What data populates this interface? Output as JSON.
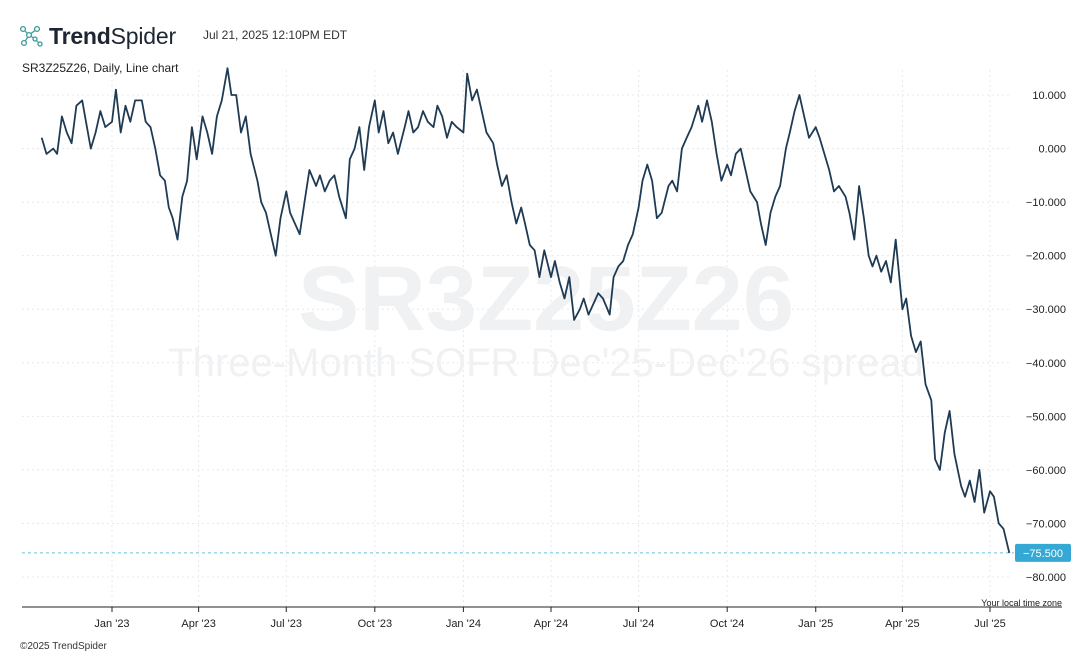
{
  "header": {
    "brand_bold": "Trend",
    "brand_light": "Spider",
    "timestamp": "Jul 21, 2025 12:10PM EDT"
  },
  "subtitle": "SR3Z25Z26, Daily, Line chart",
  "watermark": {
    "symbol": "SR3Z25Z26",
    "description": "Three-Month SOFR Dec'25-Dec'26 spread"
  },
  "timezone_note": "Your local time zone",
  "footer": "©2025 TrendSpider",
  "colors": {
    "line": "#1f3b54",
    "last_price_badge": "#35a9d4",
    "last_price_line": "#6cbfe0",
    "grid": "#e6e8eb"
  },
  "chart_data": {
    "type": "line",
    "xlabel": "",
    "ylabel": "",
    "ylim": [
      -85,
      15
    ],
    "y_ticks": [
      "10.000",
      "0.000",
      "−10.000",
      "−20.000",
      "−30.000",
      "−40.000",
      "−50.000",
      "−60.000",
      "−70.000",
      "−80.000"
    ],
    "y_tick_values": [
      10,
      0,
      -10,
      -20,
      -30,
      -40,
      -50,
      -60,
      -70,
      -80
    ],
    "x_ticks": [
      "Jan '23",
      "Apr '23",
      "Jul '23",
      "Oct '23",
      "Jan '24",
      "Apr '24",
      "Jul '24",
      "Oct '24",
      "Jan '25",
      "Apr '25",
      "Jul '25"
    ],
    "x_tick_dates": [
      "2023-01-01",
      "2023-04-01",
      "2023-07-01",
      "2023-10-01",
      "2024-01-01",
      "2024-04-01",
      "2024-07-01",
      "2024-10-01",
      "2025-01-01",
      "2025-04-01",
      "2025-07-01"
    ],
    "last_value": -75.5,
    "last_value_label": "−75.500",
    "series": [
      {
        "points": [
          [
            "2022-10-20",
            2
          ],
          [
            "2022-10-25",
            -1
          ],
          [
            "2022-11-01",
            0
          ],
          [
            "2022-11-05",
            -1
          ],
          [
            "2022-11-10",
            6
          ],
          [
            "2022-11-15",
            3
          ],
          [
            "2022-11-20",
            1
          ],
          [
            "2022-11-25",
            8
          ],
          [
            "2022-12-01",
            9
          ],
          [
            "2022-12-05",
            5
          ],
          [
            "2022-12-10",
            0
          ],
          [
            "2022-12-15",
            3
          ],
          [
            "2022-12-20",
            7
          ],
          [
            "2022-12-25",
            4
          ],
          [
            "2023-01-01",
            5
          ],
          [
            "2023-01-05",
            11
          ],
          [
            "2023-01-10",
            3
          ],
          [
            "2023-01-15",
            8
          ],
          [
            "2023-01-20",
            5
          ],
          [
            "2023-01-25",
            9
          ],
          [
            "2023-02-01",
            9
          ],
          [
            "2023-02-05",
            5
          ],
          [
            "2023-02-10",
            4
          ],
          [
            "2023-02-15",
            0
          ],
          [
            "2023-02-20",
            -5
          ],
          [
            "2023-02-25",
            -6
          ],
          [
            "2023-03-01",
            -11
          ],
          [
            "2023-03-05",
            -13
          ],
          [
            "2023-03-10",
            -17
          ],
          [
            "2023-03-15",
            -9
          ],
          [
            "2023-03-20",
            -6
          ],
          [
            "2023-03-25",
            4
          ],
          [
            "2023-03-30",
            -2
          ],
          [
            "2023-04-05",
            6
          ],
          [
            "2023-04-10",
            3
          ],
          [
            "2023-04-15",
            -1
          ],
          [
            "2023-04-20",
            6
          ],
          [
            "2023-04-25",
            9
          ],
          [
            "2023-05-01",
            15
          ],
          [
            "2023-05-05",
            10
          ],
          [
            "2023-05-10",
            10
          ],
          [
            "2023-05-15",
            3
          ],
          [
            "2023-05-20",
            6
          ],
          [
            "2023-05-25",
            -1
          ],
          [
            "2023-06-01",
            -6
          ],
          [
            "2023-06-05",
            -10
          ],
          [
            "2023-06-10",
            -12
          ],
          [
            "2023-06-15",
            -16
          ],
          [
            "2023-06-20",
            -20
          ],
          [
            "2023-06-25",
            -13
          ],
          [
            "2023-07-01",
            -8
          ],
          [
            "2023-07-05",
            -12
          ],
          [
            "2023-07-10",
            -14
          ],
          [
            "2023-07-15",
            -16
          ],
          [
            "2023-07-20",
            -10
          ],
          [
            "2023-07-25",
            -4
          ],
          [
            "2023-08-01",
            -7
          ],
          [
            "2023-08-05",
            -5
          ],
          [
            "2023-08-10",
            -8
          ],
          [
            "2023-08-15",
            -6
          ],
          [
            "2023-08-20",
            -5
          ],
          [
            "2023-08-25",
            -9
          ],
          [
            "2023-09-01",
            -13
          ],
          [
            "2023-09-05",
            -2
          ],
          [
            "2023-09-10",
            0
          ],
          [
            "2023-09-15",
            4
          ],
          [
            "2023-09-20",
            -4
          ],
          [
            "2023-09-25",
            4
          ],
          [
            "2023-10-01",
            9
          ],
          [
            "2023-10-05",
            3
          ],
          [
            "2023-10-10",
            7
          ],
          [
            "2023-10-15",
            1
          ],
          [
            "2023-10-20",
            3
          ],
          [
            "2023-10-25",
            -1
          ],
          [
            "2023-11-01",
            4
          ],
          [
            "2023-11-05",
            7
          ],
          [
            "2023-11-10",
            3
          ],
          [
            "2023-11-15",
            4
          ],
          [
            "2023-11-20",
            7
          ],
          [
            "2023-11-25",
            5
          ],
          [
            "2023-12-01",
            4
          ],
          [
            "2023-12-05",
            8
          ],
          [
            "2023-12-10",
            6
          ],
          [
            "2023-12-15",
            2
          ],
          [
            "2023-12-20",
            5
          ],
          [
            "2023-12-25",
            4
          ],
          [
            "2024-01-01",
            3
          ],
          [
            "2024-01-05",
            14
          ],
          [
            "2024-01-10",
            9
          ],
          [
            "2024-01-15",
            11
          ],
          [
            "2024-01-20",
            7
          ],
          [
            "2024-01-25",
            3
          ],
          [
            "2024-02-01",
            1
          ],
          [
            "2024-02-05",
            -3
          ],
          [
            "2024-02-10",
            -7
          ],
          [
            "2024-02-15",
            -5
          ],
          [
            "2024-02-20",
            -10
          ],
          [
            "2024-02-25",
            -14
          ],
          [
            "2024-03-01",
            -11
          ],
          [
            "2024-03-05",
            -14
          ],
          [
            "2024-03-10",
            -18
          ],
          [
            "2024-03-15",
            -19
          ],
          [
            "2024-03-20",
            -24
          ],
          [
            "2024-03-25",
            -19
          ],
          [
            "2024-04-01",
            -24
          ],
          [
            "2024-04-05",
            -21
          ],
          [
            "2024-04-10",
            -25
          ],
          [
            "2024-04-15",
            -28
          ],
          [
            "2024-04-20",
            -24
          ],
          [
            "2024-04-25",
            -32
          ],
          [
            "2024-05-01",
            -30
          ],
          [
            "2024-05-05",
            -28
          ],
          [
            "2024-05-10",
            -31
          ],
          [
            "2024-05-15",
            -29
          ],
          [
            "2024-05-20",
            -27
          ],
          [
            "2024-05-25",
            -28
          ],
          [
            "2024-06-01",
            -31
          ],
          [
            "2024-06-05",
            -24
          ],
          [
            "2024-06-10",
            -22
          ],
          [
            "2024-06-15",
            -21
          ],
          [
            "2024-06-20",
            -18
          ],
          [
            "2024-06-25",
            -16
          ],
          [
            "2024-07-01",
            -11
          ],
          [
            "2024-07-05",
            -6
          ],
          [
            "2024-07-10",
            -3
          ],
          [
            "2024-07-15",
            -6
          ],
          [
            "2024-07-20",
            -13
          ],
          [
            "2024-07-25",
            -12
          ],
          [
            "2024-08-01",
            -7
          ],
          [
            "2024-08-05",
            -6
          ],
          [
            "2024-08-10",
            -8
          ],
          [
            "2024-08-15",
            0
          ],
          [
            "2024-08-20",
            2
          ],
          [
            "2024-08-25",
            4
          ],
          [
            "2024-09-01",
            8
          ],
          [
            "2024-09-05",
            5
          ],
          [
            "2024-09-10",
            9
          ],
          [
            "2024-09-15",
            5
          ],
          [
            "2024-09-20",
            -1
          ],
          [
            "2024-09-25",
            -6
          ],
          [
            "2024-10-01",
            -3
          ],
          [
            "2024-10-05",
            -5
          ],
          [
            "2024-10-10",
            -1
          ],
          [
            "2024-10-15",
            0
          ],
          [
            "2024-10-20",
            -4
          ],
          [
            "2024-10-25",
            -8
          ],
          [
            "2024-11-01",
            -10
          ],
          [
            "2024-11-05",
            -14
          ],
          [
            "2024-11-10",
            -18
          ],
          [
            "2024-11-15",
            -12
          ],
          [
            "2024-11-20",
            -9
          ],
          [
            "2024-11-25",
            -7
          ],
          [
            "2024-12-01",
            0
          ],
          [
            "2024-12-05",
            3
          ],
          [
            "2024-12-10",
            7
          ],
          [
            "2024-12-15",
            10
          ],
          [
            "2024-12-20",
            6
          ],
          [
            "2024-12-25",
            2
          ],
          [
            "2025-01-01",
            4
          ],
          [
            "2025-01-05",
            2
          ],
          [
            "2025-01-10",
            -1
          ],
          [
            "2025-01-15",
            -4
          ],
          [
            "2025-01-20",
            -8
          ],
          [
            "2025-01-25",
            -7
          ],
          [
            "2025-02-01",
            -9
          ],
          [
            "2025-02-05",
            -12
          ],
          [
            "2025-02-10",
            -17
          ],
          [
            "2025-02-15",
            -7
          ],
          [
            "2025-02-20",
            -13
          ],
          [
            "2025-02-25",
            -20
          ],
          [
            "2025-03-01",
            -22
          ],
          [
            "2025-03-05",
            -20
          ],
          [
            "2025-03-10",
            -23
          ],
          [
            "2025-03-15",
            -21
          ],
          [
            "2025-03-20",
            -25
          ],
          [
            "2025-03-25",
            -17
          ],
          [
            "2025-04-01",
            -30
          ],
          [
            "2025-04-05",
            -28
          ],
          [
            "2025-04-10",
            -35
          ],
          [
            "2025-04-15",
            -38
          ],
          [
            "2025-04-20",
            -36
          ],
          [
            "2025-04-25",
            -44
          ],
          [
            "2025-05-01",
            -47
          ],
          [
            "2025-05-05",
            -58
          ],
          [
            "2025-05-10",
            -60
          ],
          [
            "2025-05-15",
            -53
          ],
          [
            "2025-05-20",
            -49
          ],
          [
            "2025-05-25",
            -57
          ],
          [
            "2025-06-01",
            -63
          ],
          [
            "2025-06-05",
            -65
          ],
          [
            "2025-06-10",
            -62
          ],
          [
            "2025-06-15",
            -66
          ],
          [
            "2025-06-20",
            -60
          ],
          [
            "2025-06-25",
            -68
          ],
          [
            "2025-07-01",
            -64
          ],
          [
            "2025-07-05",
            -65
          ],
          [
            "2025-07-10",
            -70
          ],
          [
            "2025-07-15",
            -71
          ],
          [
            "2025-07-21",
            -75.5
          ]
        ]
      }
    ]
  }
}
